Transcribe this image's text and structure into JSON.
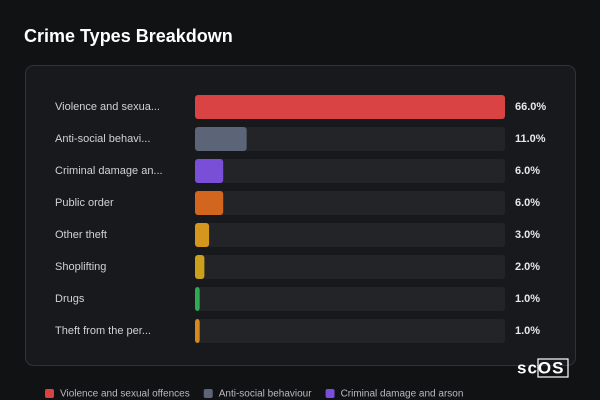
{
  "chart_data": {
    "type": "bar",
    "orientation": "horizontal",
    "title": "Crime Types Breakdown",
    "categories": [
      "Violence and sexua...",
      "Anti-social behavi...",
      "Criminal damage an...",
      "Public order",
      "Other theft",
      "Shoplifting",
      "Drugs",
      "Theft from the per..."
    ],
    "values": [
      66,
      11,
      6,
      6,
      3,
      2,
      1,
      1
    ],
    "value_labels": [
      "66.0%",
      "11.0%",
      "6.0%",
      "6.0%",
      "3.0%",
      "2.0%",
      "1.0%",
      "1.0%"
    ],
    "colors": [
      "#d94343",
      "#5b6577",
      "#7a4fd8",
      "#d2661f",
      "#d4961c",
      "#caa01c",
      "#2eaa52",
      "#d68a1e"
    ],
    "xlim": [
      0,
      66
    ],
    "legend": [
      {
        "name": "Violence and sexual offences",
        "color": "#d94343"
      },
      {
        "name": "Anti-social behaviour",
        "color": "#5b6577"
      },
      {
        "name": "Criminal damage and arson",
        "color": "#7a4fd8"
      }
    ]
  },
  "watermark": "scOS"
}
